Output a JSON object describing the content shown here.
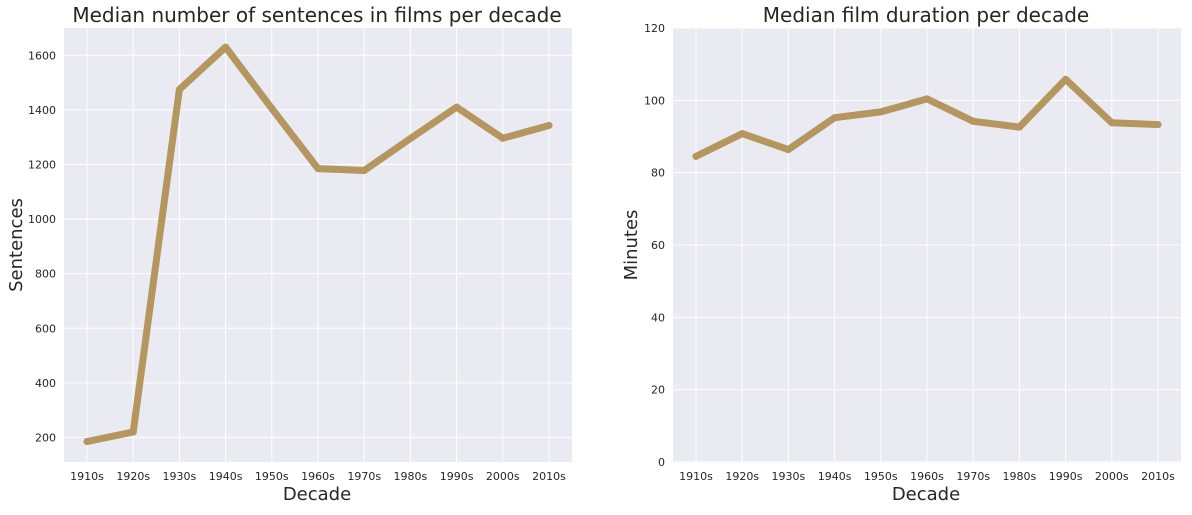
{
  "chart_data": [
    {
      "type": "line",
      "title": "Median number of sentences in films per decade",
      "xlabel": "Decade",
      "ylabel": "Sentences",
      "categories": [
        "1910s",
        "1920s",
        "1930s",
        "1940s",
        "1950s",
        "1960s",
        "1970s",
        "1980s",
        "1990s",
        "2000s",
        "2010s"
      ],
      "values": [
        185,
        220,
        1475,
        1630,
        1405,
        1185,
        1178,
        1295,
        1410,
        1296,
        1343
      ],
      "yticks": [
        200,
        400,
        600,
        800,
        1000,
        1200,
        1400,
        1600
      ],
      "ylim": [
        110,
        1700
      ],
      "grid": true,
      "color": "#b5965e",
      "background": "#eaeaf2"
    },
    {
      "type": "line",
      "title": "Median film duration per decade",
      "xlabel": "Decade",
      "ylabel": "Minutes",
      "categories": [
        "1910s",
        "1920s",
        "1930s",
        "1940s",
        "1950s",
        "1960s",
        "1970s",
        "1980s",
        "1990s",
        "2000s",
        "2010s"
      ],
      "values": [
        84.5,
        90.8,
        86.4,
        95.2,
        96.8,
        100.4,
        94.2,
        92.6,
        105.8,
        93.8,
        93.3
      ],
      "yticks": [
        0,
        20,
        40,
        60,
        80,
        100,
        120
      ],
      "ylim": [
        0,
        120
      ],
      "grid": true,
      "color": "#b5965e",
      "background": "#eaeaf2"
    }
  ]
}
